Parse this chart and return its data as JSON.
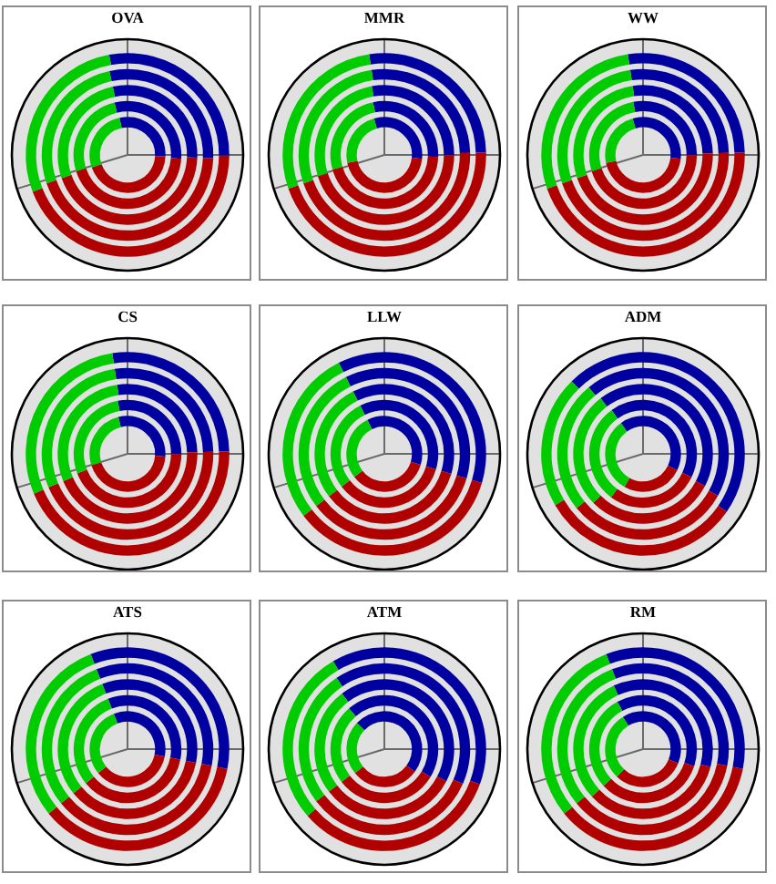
{
  "chart_data": [
    {
      "type": "donut",
      "title": "OVA",
      "categories": [
        null,
        null,
        null
      ],
      "colors": [
        "#0000a0",
        "#b00000",
        "#00cc00"
      ],
      "series": [
        {
          "values": [
            28,
            44,
            28
          ]
        },
        {
          "values": [
            29,
            44,
            27
          ]
        },
        {
          "values": [
            29,
            44,
            27
          ]
        },
        {
          "values": [
            30,
            44,
            26
          ]
        },
        {
          "values": [
            29,
            44,
            27
          ]
        }
      ]
    },
    {
      "type": "donut",
      "title": "MMR",
      "categories": [
        null,
        null,
        null
      ],
      "colors": [
        "#0000a0",
        "#b00000",
        "#00cc00"
      ],
      "series": [
        {
          "values": [
            27,
            45,
            28
          ]
        },
        {
          "values": [
            27,
            45,
            28
          ]
        },
        {
          "values": [
            28,
            45,
            27
          ]
        },
        {
          "values": [
            29,
            45,
            26
          ]
        },
        {
          "values": [
            31,
            45,
            24
          ]
        }
      ]
    },
    {
      "type": "donut",
      "title": "WW",
      "categories": [
        null,
        null,
        null
      ],
      "colors": [
        "#0000a0",
        "#b00000",
        "#00cc00"
      ],
      "series": [
        {
          "values": [
            27,
            45,
            28
          ]
        },
        {
          "values": [
            27,
            45,
            28
          ]
        },
        {
          "values": [
            27,
            45,
            28
          ]
        },
        {
          "values": [
            28,
            45,
            27
          ]
        },
        {
          "values": [
            31,
            45,
            24
          ]
        }
      ]
    },
    {
      "type": "donut",
      "title": "CS",
      "categories": [
        null,
        null,
        null
      ],
      "colors": [
        "#0000a0",
        "#b00000",
        "#00cc00"
      ],
      "series": [
        {
          "values": [
            27,
            44,
            29
          ]
        },
        {
          "values": [
            27,
            44,
            29
          ]
        },
        {
          "values": [
            27,
            44,
            29
          ]
        },
        {
          "values": [
            28,
            44,
            28
          ]
        },
        {
          "values": [
            30,
            44,
            26
          ]
        }
      ]
    },
    {
      "type": "donut",
      "title": "LLW",
      "categories": [
        null,
        null,
        null
      ],
      "colors": [
        "#0000a0",
        "#b00000",
        "#00cc00"
      ],
      "series": [
        {
          "values": [
            37,
            35,
            28
          ]
        },
        {
          "values": [
            37,
            35,
            28
          ]
        },
        {
          "values": [
            37,
            35,
            28
          ]
        },
        {
          "values": [
            37,
            35,
            28
          ]
        },
        {
          "values": [
            37,
            35,
            28
          ]
        }
      ]
    },
    {
      "type": "donut",
      "title": "ADM",
      "categories": [
        null,
        null,
        null
      ],
      "colors": [
        "#0000a0",
        "#b00000",
        "#00cc00"
      ],
      "series": [
        {
          "values": [
            47,
            32,
            21
          ]
        },
        {
          "values": [
            44,
            31,
            25
          ]
        },
        {
          "values": [
            43,
            30,
            27
          ]
        },
        {
          "values": [
            42,
            28,
            30
          ]
        },
        {
          "values": [
            42,
            26,
            32
          ]
        }
      ]
    },
    {
      "type": "donut",
      "title": "ATS",
      "categories": [
        null,
        null,
        null
      ],
      "colors": [
        "#0000a0",
        "#b00000",
        "#00cc00"
      ],
      "series": [
        {
          "values": [
            34,
            36,
            30
          ]
        },
        {
          "values": [
            34,
            36,
            30
          ]
        },
        {
          "values": [
            34,
            36,
            30
          ]
        },
        {
          "values": [
            34,
            36,
            30
          ]
        },
        {
          "values": [
            34,
            36,
            30
          ]
        }
      ]
    },
    {
      "type": "donut",
      "title": "ATM",
      "categories": [
        null,
        null,
        null
      ],
      "colors": [
        "#0000a0",
        "#b00000",
        "#00cc00"
      ],
      "series": [
        {
          "values": [
            39,
            33,
            28
          ]
        },
        {
          "values": [
            41,
            33,
            26
          ]
        },
        {
          "values": [
            43,
            32,
            25
          ]
        },
        {
          "values": [
            45,
            31,
            24
          ]
        },
        {
          "values": [
            48,
            29,
            23
          ]
        }
      ]
    },
    {
      "type": "donut",
      "title": "RM",
      "categories": [
        null,
        null,
        null
      ],
      "colors": [
        "#0000a0",
        "#b00000",
        "#00cc00"
      ],
      "series": [
        {
          "values": [
            34,
            36,
            30
          ]
        },
        {
          "values": [
            34,
            36,
            30
          ]
        },
        {
          "values": [
            36,
            34,
            30
          ]
        },
        {
          "values": [
            38,
            33,
            29
          ]
        },
        {
          "values": [
            40,
            31,
            29
          ]
        }
      ]
    }
  ]
}
